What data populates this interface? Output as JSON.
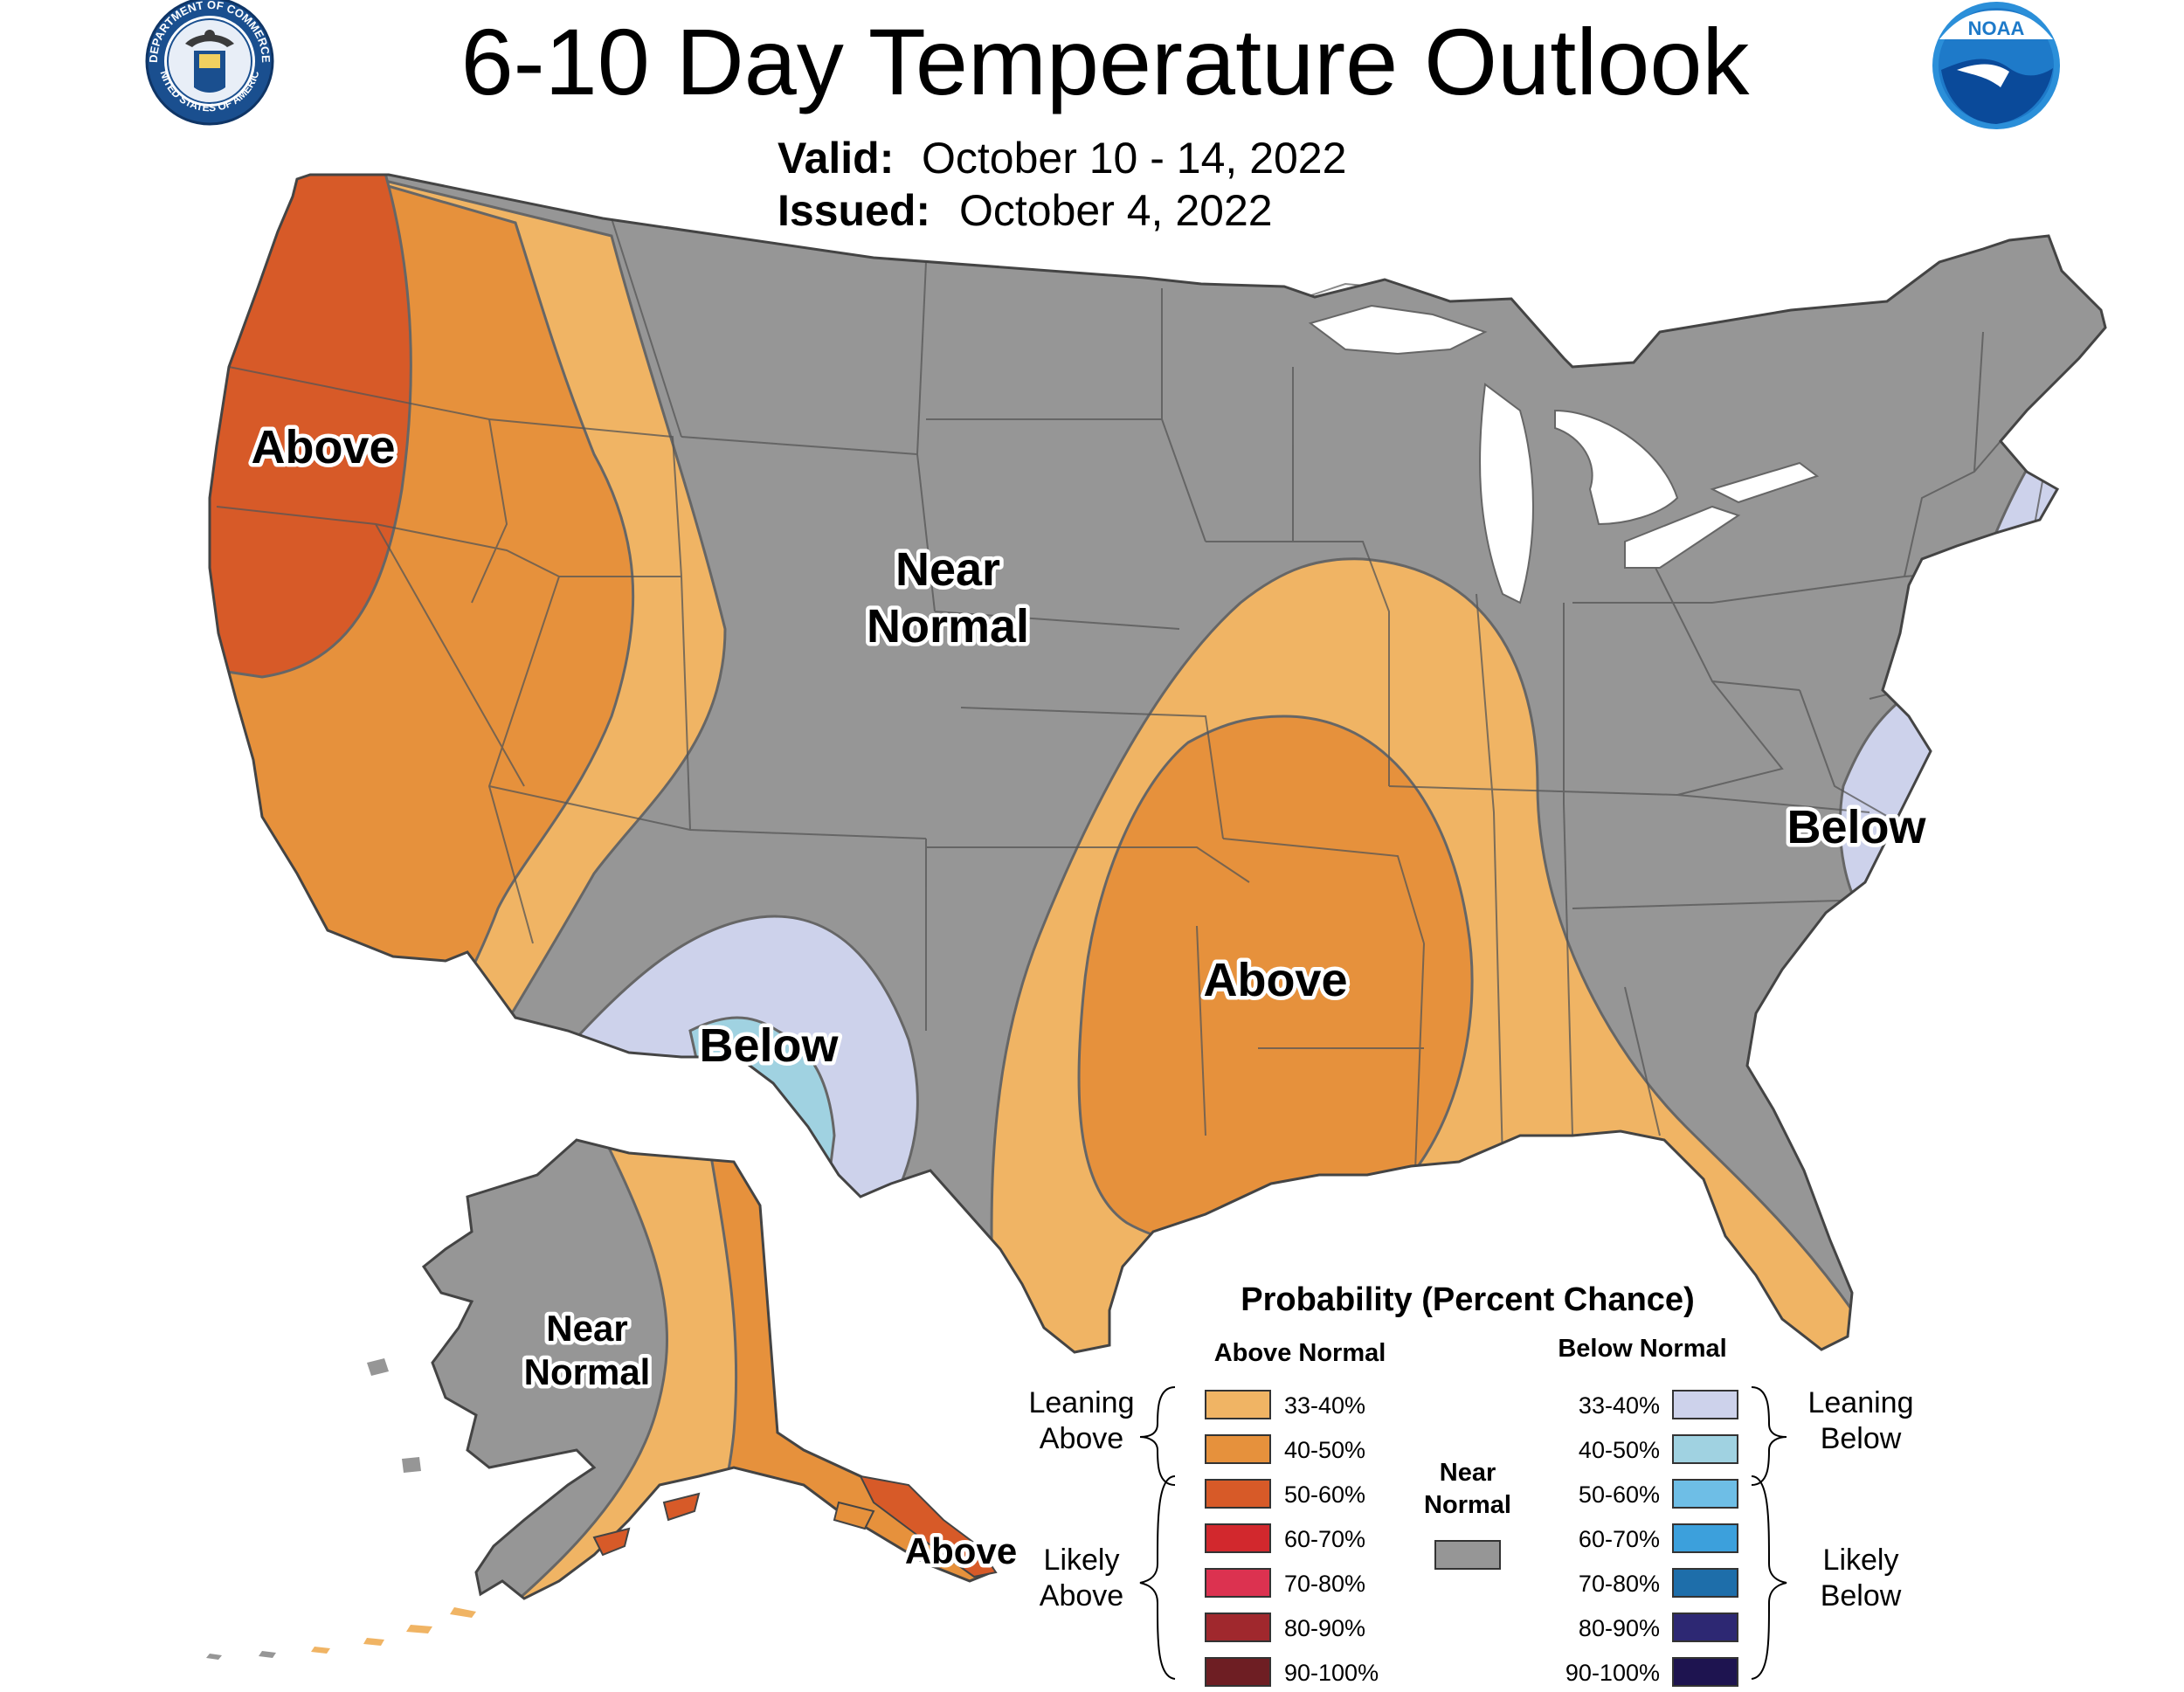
{
  "header": {
    "title": "6-10 Day Temperature Outlook",
    "valid_label": "Valid:",
    "valid_value": "October 10 - 14, 2022",
    "issued_label": "Issued:",
    "issued_value": "October 4, 2022",
    "left_seal": {
      "icon": "department-of-commerce-seal-icon",
      "text_top": "DEPARTMENT OF COMMERCE",
      "text_bottom": "UNITED STATES OF AMERICA"
    },
    "right_logo": {
      "icon": "noaa-logo-icon",
      "text": "NOAA"
    }
  },
  "map": {
    "region_labels": {
      "above_west": "Above",
      "near_normal_plains_1": "Near",
      "near_normal_plains_2": "Normal",
      "below_southwest": "Below",
      "above_south_central": "Above",
      "below_mid_atlantic": "Below",
      "alaska_near_1": "Near",
      "alaska_near_2": "Normal",
      "alaska_above": "Above"
    }
  },
  "legend": {
    "title": "Probability (Percent Chance)",
    "above_header": "Above Normal",
    "below_header": "Below Normal",
    "near_header_1": "Near",
    "near_header_2": "Normal",
    "near_color": "#969696",
    "leaning_above_1": "Leaning",
    "leaning_above_2": "Above",
    "likely_above_1": "Likely",
    "likely_above_2": "Above",
    "leaning_below_1": "Leaning",
    "leaning_below_2": "Below",
    "likely_below_1": "Likely",
    "likely_below_2": "Below",
    "above_bins": [
      {
        "label": "33-40%",
        "color": "#f0b464"
      },
      {
        "label": "40-50%",
        "color": "#e6913c"
      },
      {
        "label": "50-60%",
        "color": "#d75a28"
      },
      {
        "label": "60-70%",
        "color": "#d2282d"
      },
      {
        "label": "70-80%",
        "color": "#dc3250"
      },
      {
        "label": "80-90%",
        "color": "#a0282d"
      },
      {
        "label": "90-100%",
        "color": "#6e1e23"
      }
    ],
    "below_bins": [
      {
        "label": "33-40%",
        "color": "#cdd2eb"
      },
      {
        "label": "40-50%",
        "color": "#a0d2e1"
      },
      {
        "label": "50-60%",
        "color": "#6ebee6"
      },
      {
        "label": "60-70%",
        "color": "#3ca0dc"
      },
      {
        "label": "70-80%",
        "color": "#1e6eaa"
      },
      {
        "label": "80-90%",
        "color": "#2d2873"
      },
      {
        "label": "90-100%",
        "color": "#1e1450"
      }
    ]
  }
}
